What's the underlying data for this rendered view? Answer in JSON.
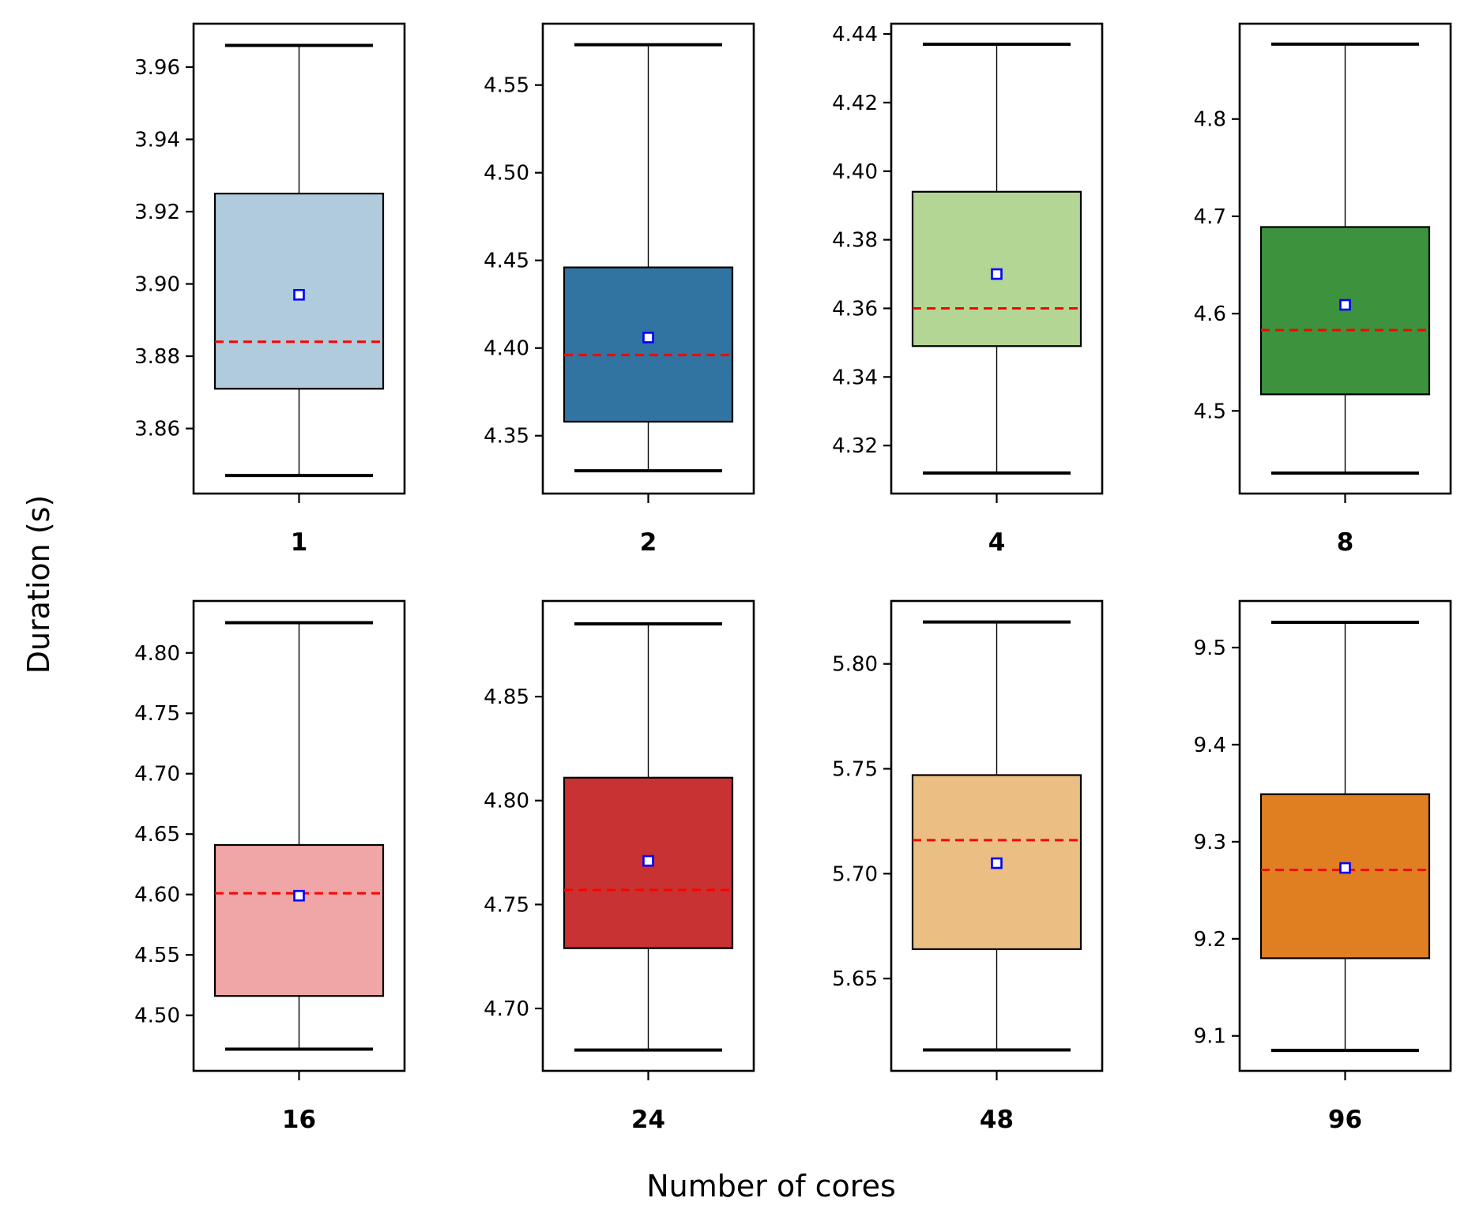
{
  "chart_data": {
    "type": "box",
    "xlabel": "Number of cores",
    "ylabel": "Duration (s)",
    "legend": "none",
    "grid": false,
    "markers": {
      "median_line": {
        "style": "dashed",
        "color": "#ff0000"
      },
      "mean_marker": {
        "shape": "hollow-square",
        "color": "#0000ff"
      }
    },
    "panels": [
      {
        "category": "1",
        "color": "#afcbdc",
        "ylim": [
          3.842,
          3.972
        ],
        "yticks": [
          "3.86",
          "3.88",
          "3.90",
          "3.92",
          "3.94",
          "3.96"
        ],
        "stats": {
          "whisker_low": 3.847,
          "q1": 3.871,
          "median": 3.884,
          "mean": 3.897,
          "q3": 3.925,
          "whisker_high": 3.966
        }
      },
      {
        "category": "2",
        "color": "#3274a1",
        "ylim": [
          4.317,
          4.585
        ],
        "yticks": [
          "4.35",
          "4.40",
          "4.45",
          "4.50",
          "4.55"
        ],
        "stats": {
          "whisker_low": 4.33,
          "q1": 4.358,
          "median": 4.396,
          "mean": 4.406,
          "q3": 4.446,
          "whisker_high": 4.573
        }
      },
      {
        "category": "4",
        "color": "#b4d695",
        "ylim": [
          4.306,
          4.443
        ],
        "yticks": [
          "4.32",
          "4.34",
          "4.36",
          "4.38",
          "4.40",
          "4.42",
          "4.44"
        ],
        "stats": {
          "whisker_low": 4.312,
          "q1": 4.349,
          "median": 4.36,
          "mean": 4.37,
          "q3": 4.394,
          "whisker_high": 4.437
        }
      },
      {
        "category": "8",
        "color": "#3d923e",
        "ylim": [
          4.415,
          4.898
        ],
        "yticks": [
          "4.5",
          "4.6",
          "4.7",
          "4.8"
        ],
        "stats": {
          "whisker_low": 4.436,
          "q1": 4.517,
          "median": 4.583,
          "mean": 4.609,
          "q3": 4.689,
          "whisker_high": 4.877
        }
      },
      {
        "category": "16",
        "color": "#f0a5a6",
        "ylim": [
          4.454,
          4.843
        ],
        "yticks": [
          "4.50",
          "4.55",
          "4.60",
          "4.65",
          "4.70",
          "4.75",
          "4.80"
        ],
        "stats": {
          "whisker_low": 4.472,
          "q1": 4.516,
          "median": 4.601,
          "mean": 4.599,
          "q3": 4.641,
          "whisker_high": 4.825
        }
      },
      {
        "category": "24",
        "color": "#c83233",
        "ylim": [
          4.67,
          4.896
        ],
        "yticks": [
          "4.70",
          "4.75",
          "4.80",
          "4.85"
        ],
        "stats": {
          "whisker_low": 4.68,
          "q1": 4.729,
          "median": 4.757,
          "mean": 4.771,
          "q3": 4.811,
          "whisker_high": 4.885
        }
      },
      {
        "category": "48",
        "color": "#ebbe83",
        "ylim": [
          5.606,
          5.83
        ],
        "yticks": [
          "5.65",
          "5.70",
          "5.75",
          "5.80"
        ],
        "stats": {
          "whisker_low": 5.616,
          "q1": 5.664,
          "median": 5.716,
          "mean": 5.705,
          "q3": 5.747,
          "whisker_high": 5.82
        }
      },
      {
        "category": "96",
        "color": "#e07f22",
        "ylim": [
          9.064,
          9.548
        ],
        "yticks": [
          "9.1",
          "9.2",
          "9.3",
          "9.4",
          "9.5"
        ],
        "stats": {
          "whisker_low": 9.085,
          "q1": 9.18,
          "median": 9.271,
          "mean": 9.273,
          "q3": 9.349,
          "whisker_high": 9.526
        }
      }
    ]
  }
}
